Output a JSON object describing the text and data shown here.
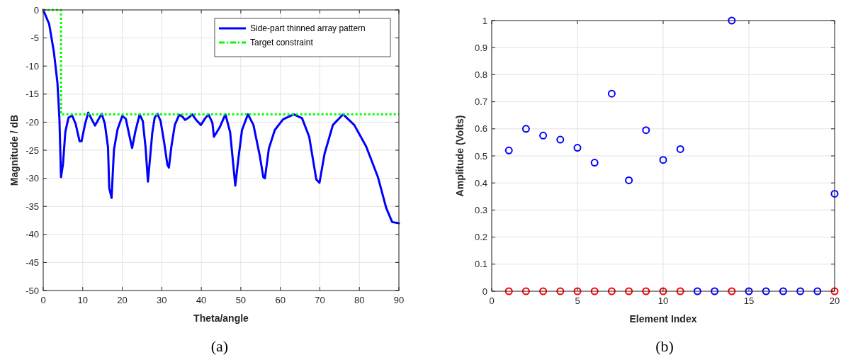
{
  "chart_data": [
    {
      "type": "line",
      "xlabel": "Theta/angle",
      "ylabel": "Magnitude / dB",
      "xlim": [
        0,
        90
      ],
      "ylim": [
        -50,
        0
      ],
      "xticks": [
        0,
        10,
        20,
        30,
        40,
        50,
        60,
        70,
        80,
        90
      ],
      "yticks": [
        -50,
        -45,
        -40,
        -35,
        -30,
        -25,
        -20,
        -15,
        -10,
        -5,
        0
      ],
      "grid": true,
      "legend": "top right",
      "annotations": [
        "(a)"
      ],
      "series": [
        {
          "name": "Side-part thinned array pattern",
          "color": "#0000ff",
          "line_style": "solid",
          "x": [
            0,
            1.5,
            2.7,
            3.6,
            4.1,
            4.5,
            5.0,
            5.6,
            6.4,
            7.3,
            8.2,
            9.2,
            9.7,
            10.6,
            11.4,
            12.2,
            13.1,
            13.9,
            14.8,
            15.6,
            16.4,
            16.7,
            17.3,
            17.9,
            18.8,
            20,
            20.9,
            21.8,
            22.5,
            23.3,
            24.4,
            25.2,
            25.9,
            26.5,
            27.6,
            28.2,
            28.9,
            29.7,
            30.6,
            31.4,
            31.8,
            32.4,
            33.3,
            34.4,
            35.2,
            35.9,
            36.8,
            37.7,
            38.7,
            39.9,
            40.9,
            41.8,
            42.8,
            43.2,
            44.6,
            46.1,
            47.3,
            48.6,
            49.4,
            50.3,
            51.8,
            53.2,
            54.8,
            55.7,
            56.1,
            57.1,
            58.6,
            60.7,
            63.4,
            65.5,
            67.3,
            69.1,
            69.9,
            71.2,
            73.3,
            75.9,
            78.7,
            81.7,
            84.7,
            86.8,
            88.3,
            90
          ],
          "values": [
            0,
            -2.5,
            -7.5,
            -13,
            -19.4,
            -29.8,
            -27.5,
            -21.7,
            -19.2,
            -18.8,
            -20.3,
            -23.4,
            -23.4,
            -20.3,
            -18.3,
            -19.4,
            -20.6,
            -19.6,
            -18.5,
            -20.3,
            -24.5,
            -31.7,
            -33.5,
            -24.9,
            -21.3,
            -18.9,
            -19.4,
            -22.4,
            -24.6,
            -21.7,
            -18.6,
            -19.8,
            -24.5,
            -30.6,
            -21.9,
            -19.2,
            -18.5,
            -19.8,
            -23.6,
            -27.5,
            -28.1,
            -24.5,
            -20.5,
            -18.7,
            -19,
            -19.6,
            -19.2,
            -18.6,
            -19.6,
            -20.5,
            -19.4,
            -18.6,
            -20.1,
            -22.6,
            -21,
            -18.6,
            -21.8,
            -31.3,
            -26.4,
            -21.4,
            -18.6,
            -20.5,
            -26,
            -29.8,
            -30,
            -24.7,
            -21.4,
            -19.5,
            -18.6,
            -19.3,
            -22.6,
            -30.2,
            -30.8,
            -25.6,
            -20.5,
            -18.6,
            -20.5,
            -24.3,
            -29.8,
            -35.3,
            -37.8,
            -38
          ]
        },
        {
          "name": "Target constraint",
          "color": "#00ff00",
          "line_style": "dotted",
          "x": [
            0,
            4.5,
            4.5,
            90
          ],
          "values": [
            0,
            0,
            -18.6,
            -18.6
          ]
        }
      ]
    },
    {
      "type": "scatter",
      "xlabel": "Element Index",
      "ylabel": "Amplitude (Volts)",
      "xlim": [
        0,
        20
      ],
      "ylim": [
        0,
        1
      ],
      "xticks": [
        0,
        5,
        10,
        15,
        20
      ],
      "yticks": [
        0,
        0.1,
        0.2,
        0.3,
        0.4,
        0.5,
        0.6,
        0.7,
        0.8,
        0.9,
        1
      ],
      "grid": true,
      "marker": "circle",
      "annotations": [
        "(b)"
      ],
      "series": [
        {
          "color": "#ff0000",
          "x": [
            1,
            2,
            3,
            4,
            5,
            6,
            7,
            8,
            9,
            10,
            11,
            14,
            20
          ],
          "values": [
            0,
            0,
            0,
            0,
            0,
            0,
            0,
            0,
            0,
            0,
            0,
            0,
            0
          ]
        },
        {
          "color": "#0000ff",
          "x": [
            1,
            2,
            3,
            4,
            5,
            6,
            7,
            8,
            9,
            10,
            11,
            12,
            13,
            14,
            15,
            16,
            17,
            18,
            19,
            20
          ],
          "values": [
            0.52,
            0.6,
            0.575,
            0.56,
            0.53,
            0.475,
            0.73,
            0.41,
            0.595,
            0.485,
            0.525,
            0,
            0,
            1,
            0,
            0,
            0,
            0,
            0,
            0.36
          ]
        }
      ]
    }
  ]
}
